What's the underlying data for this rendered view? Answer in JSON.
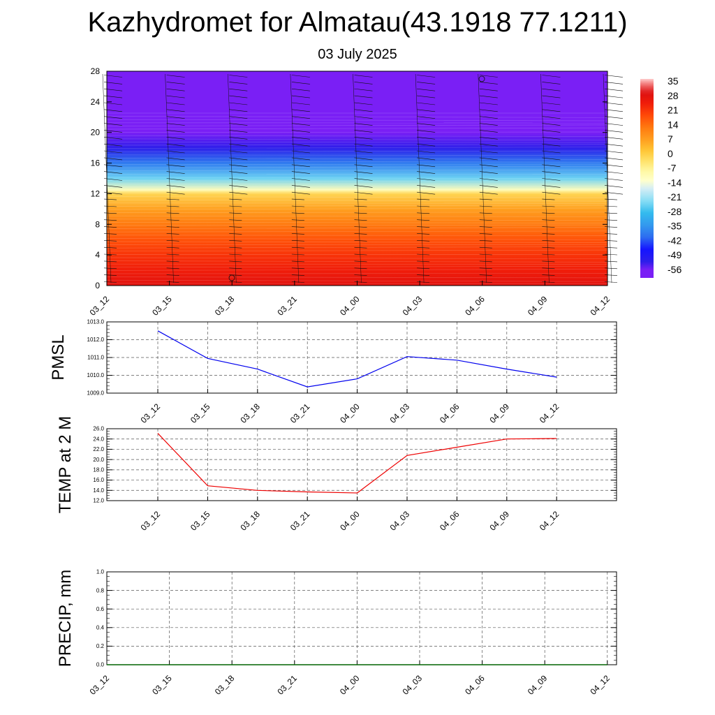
{
  "header": {
    "title": "Kazhydromet for Almatau(43.1918 77.1211)",
    "subtitle": "03 July 2025"
  },
  "chart_data": [
    {
      "type": "heatmap",
      "description_kind": "time-height cross-section (temperature shading with wind barbs)",
      "x_tick_labels": [
        "03_12",
        "03_15",
        "03_18",
        "03_21",
        "04_00",
        "04_03",
        "04_06",
        "04_09",
        "04_12"
      ],
      "y_ticks": [
        0,
        4,
        8,
        12,
        16,
        20,
        24,
        28
      ],
      "ylim": [
        0,
        28
      ],
      "colorbar": {
        "labels": [
          "35",
          "28",
          "21",
          "14",
          "7",
          "0",
          "-7",
          "-14",
          "-21",
          "-28",
          "-35",
          "-42",
          "-49",
          "-56"
        ],
        "range": [
          -60,
          38
        ]
      },
      "temperature_profile": {
        "levels": [
          0,
          2,
          4,
          6,
          8,
          10,
          12,
          12.5,
          14,
          16,
          18,
          20,
          21,
          22,
          28
        ],
        "values": [
          30,
          26,
          23,
          19,
          14,
          8,
          0,
          -10,
          -24,
          -38,
          -52,
          -62,
          -68,
          -80,
          -80
        ]
      },
      "legend_position": "right"
    },
    {
      "type": "line",
      "ylabel": "PMSL",
      "x": [
        "03_12",
        "03_15",
        "03_18",
        "03_21",
        "04_00",
        "04_03",
        "04_06",
        "04_09",
        "04_12"
      ],
      "series": [
        {
          "values": [
            1012.5,
            1010.95,
            1010.35,
            1009.35,
            1009.8,
            1011.05,
            1010.85,
            1010.35,
            1009.9
          ],
          "color": "#0000ee"
        }
      ],
      "ylim": [
        1009.0,
        1013.0
      ],
      "y_tick_labels": [
        "1013.0",
        "1012.0",
        "1011.0",
        "1010.0",
        "1009.0"
      ],
      "grid": true
    },
    {
      "type": "line",
      "ylabel": "TEMP at 2 M",
      "x": [
        "03_12",
        "03_15",
        "03_18",
        "03_21",
        "04_00",
        "04_03",
        "04_06",
        "04_09",
        "04_12"
      ],
      "series": [
        {
          "values": [
            25.1,
            14.9,
            14.0,
            13.7,
            13.5,
            20.8,
            22.4,
            24.0,
            24.1
          ],
          "color": "#ee0000"
        }
      ],
      "ylim": [
        12.0,
        26.0
      ],
      "y_tick_labels": [
        "26.0",
        "24.0",
        "22.0",
        "20.0",
        "18.0",
        "16.0",
        "14.0",
        "12.0"
      ],
      "grid": true
    },
    {
      "type": "line",
      "ylabel": "PRECIP, mm",
      "x": [
        "03_12",
        "03_15",
        "03_18",
        "03_21",
        "04_00",
        "04_03",
        "04_06",
        "04_09",
        "04_12"
      ],
      "series": [
        {
          "values": [
            0,
            0,
            0,
            0,
            0,
            0,
            0,
            0,
            0
          ],
          "color": "#006400"
        }
      ],
      "ylim": [
        0.0,
        1.0
      ],
      "y_tick_labels": [
        "1.0",
        "0.8",
        "0.6",
        "0.4",
        "0.2",
        "0.0"
      ],
      "grid": true
    }
  ]
}
